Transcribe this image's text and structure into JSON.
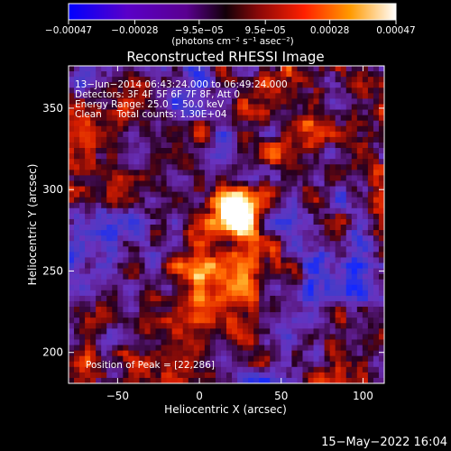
{
  "chart_data": {
    "type": "heatmap",
    "title": "Reconstructed RHESSI Image",
    "xlabel": "Heliocentric X (arcsec)",
    "ylabel": "Heliocentric Y (arcsec)",
    "xlim": [
      -80,
      113
    ],
    "ylim": [
      181,
      376
    ],
    "x_ticks": [
      -50,
      0,
      50,
      100
    ],
    "x_tick_labels": [
      "−50",
      "0",
      "50",
      "100"
    ],
    "y_ticks": [
      200,
      250,
      300,
      350
    ],
    "y_tick_labels": [
      "200",
      "250",
      "300",
      "350"
    ],
    "colorbar": {
      "range": [
        -0.00047,
        0.00047
      ],
      "ticks": [
        -0.00047,
        -0.00028,
        -9.5e-05,
        9.5e-05,
        0.00028,
        0.00047
      ],
      "tick_labels": [
        "−0.00047",
        "−0.00028",
        "−9.5e−05",
        "9.5e−05",
        "0.00028",
        "0.00047"
      ],
      "units_label": "(photons cm⁻² s⁻¹ asec⁻²)",
      "colors": [
        "#0000ff",
        "#6a00b0",
        "#1a0010",
        "#a01010",
        "#ff3000",
        "#ff8c00",
        "#ffd040",
        "#ffffff"
      ]
    },
    "annotations": [
      "13−Jun−2014 06:43:24.000 to 06:49:24.000",
      "Detectors: 3F 4F 5F 6F 7F 8F, Att 0",
      "Energy Range: 25.0 − 50.0 keV",
      "Clean     Total counts: 1.30E+04"
    ],
    "peak_label": "Position of Peak = [22,286]",
    "peak": [
      22,
      286
    ],
    "footer_date": "15−May−2022 16:04",
    "grid": false
  }
}
